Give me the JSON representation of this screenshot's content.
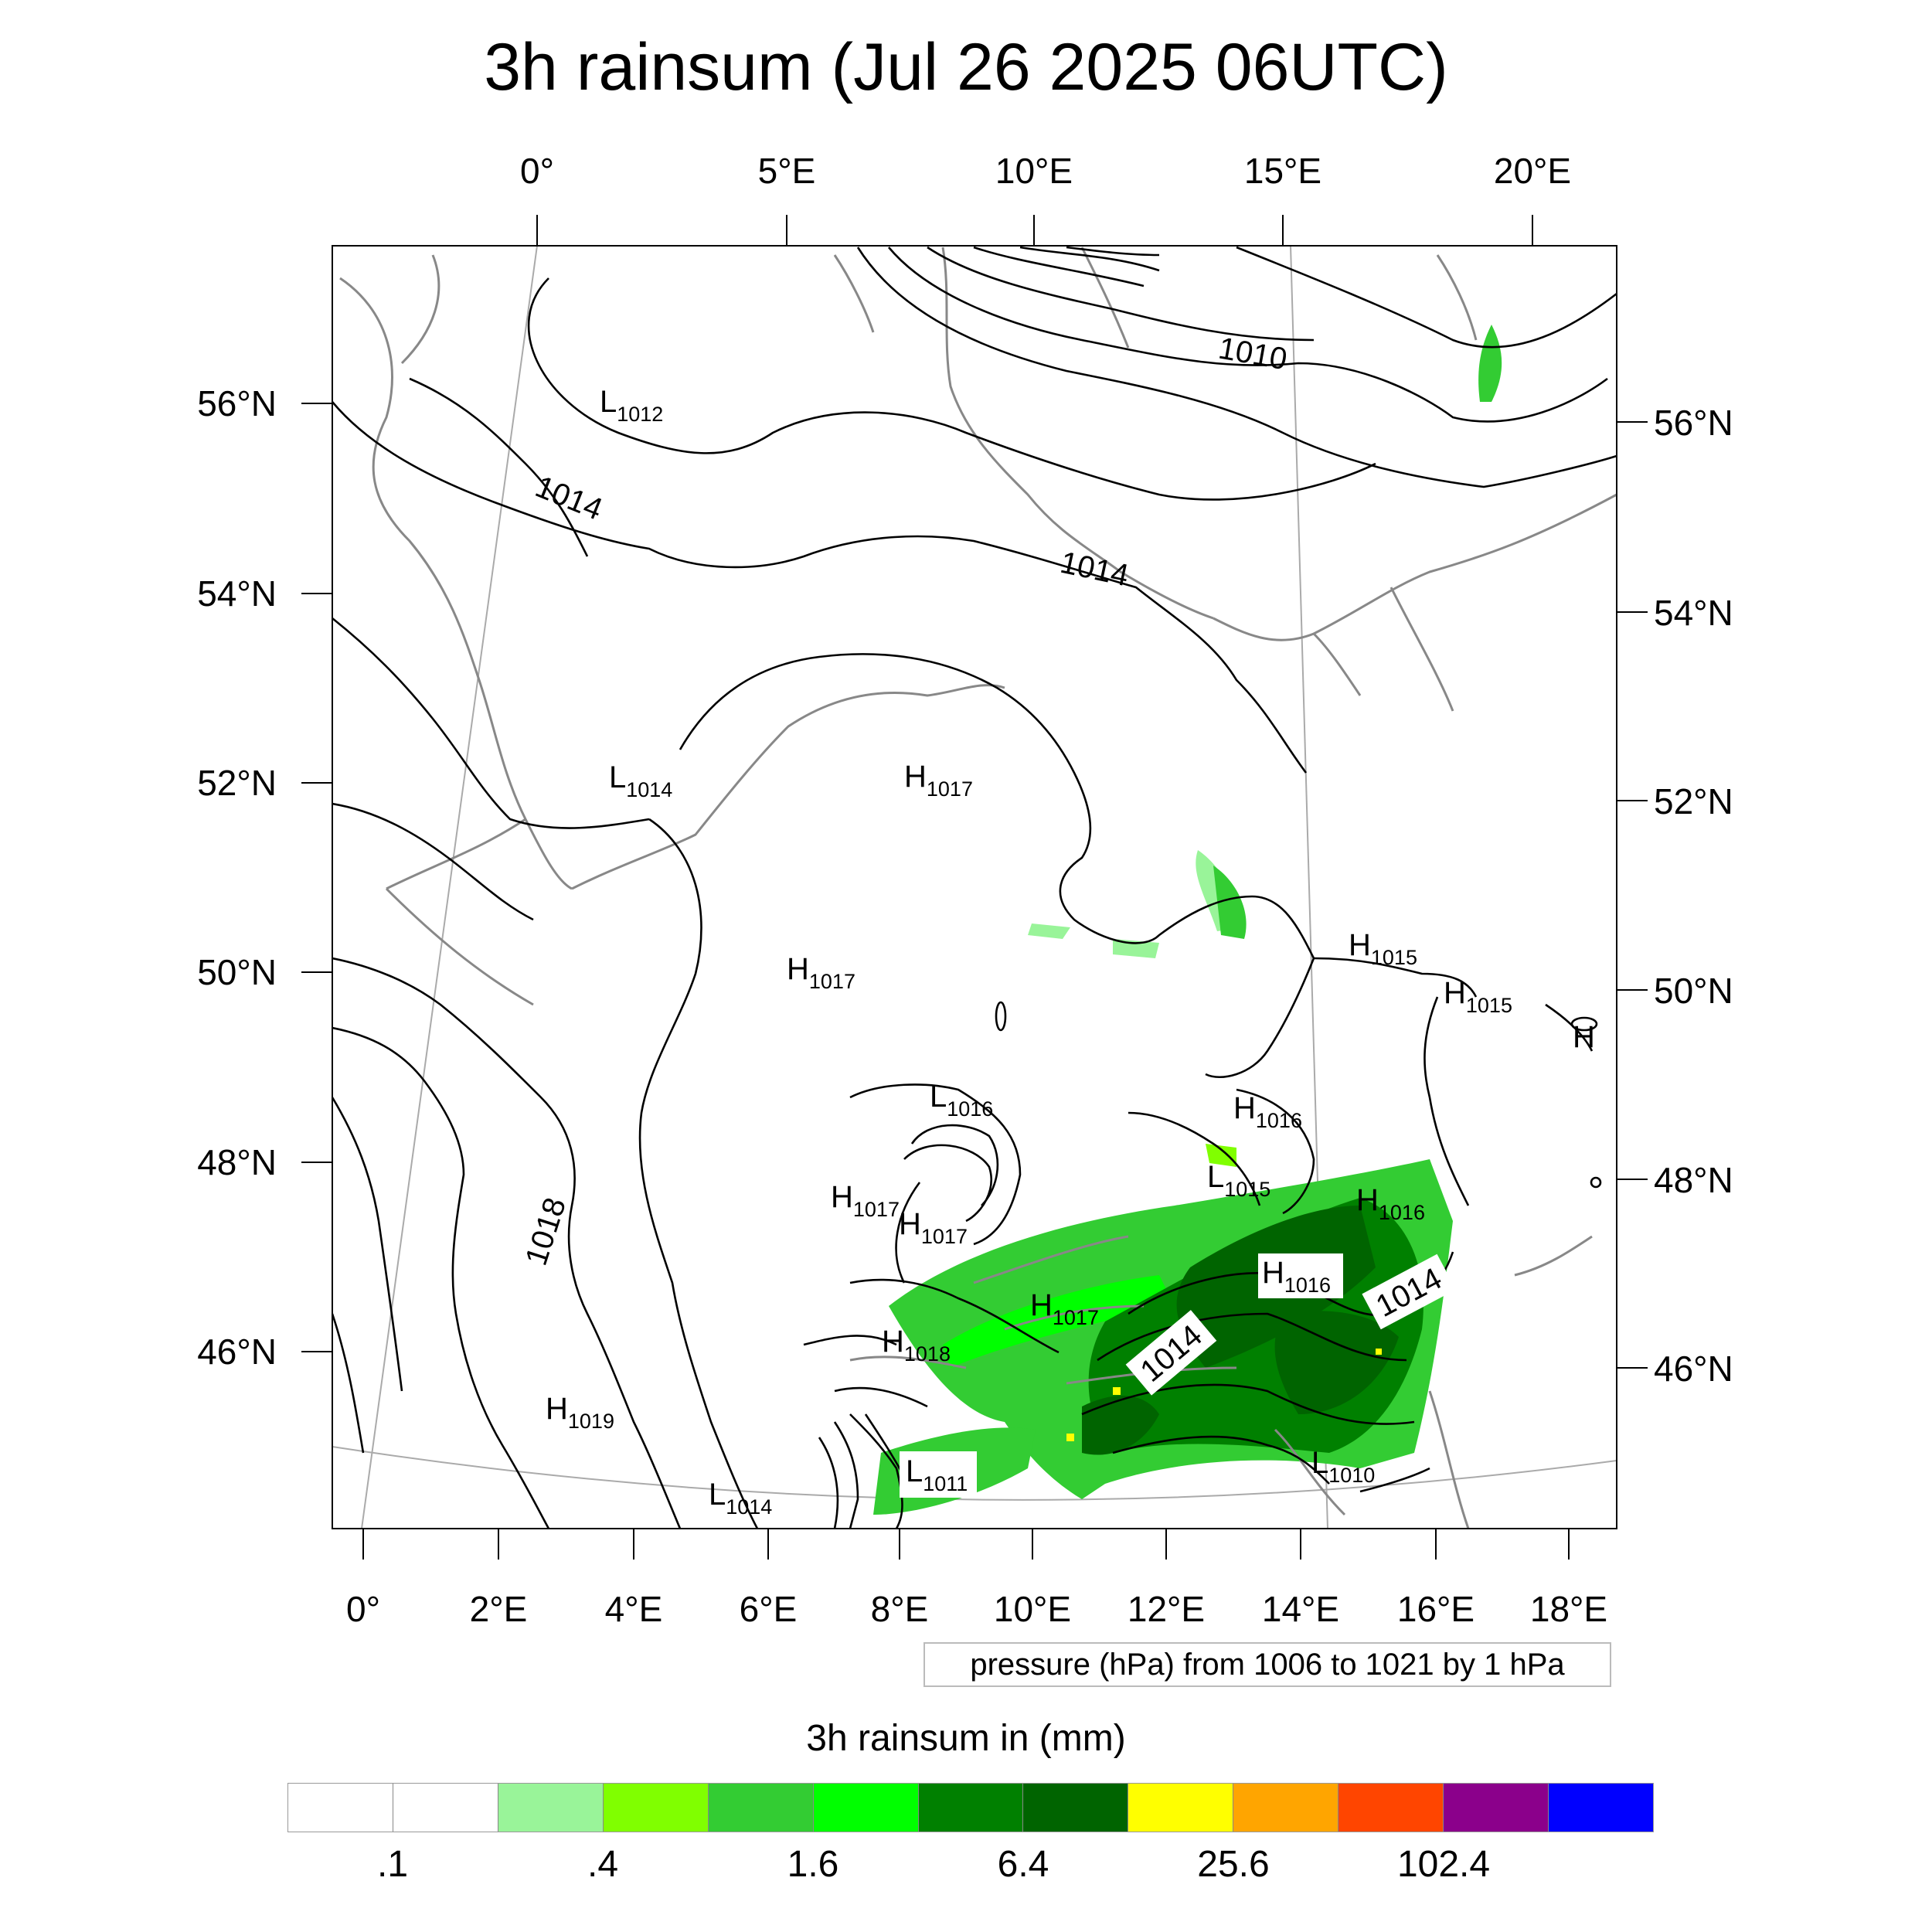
{
  "title": "3h rainsum (Jul 26 2025 06UTC)",
  "top_lon_labels": [
    "0°",
    "5°E",
    "10°E",
    "15°E",
    "20°E"
  ],
  "bottom_lon_labels": [
    "0°",
    "2°E",
    "4°E",
    "6°E",
    "8°E",
    "10°E",
    "12°E",
    "14°E",
    "16°E",
    "18°E"
  ],
  "left_lat_labels": [
    "56°N",
    "54°N",
    "52°N",
    "50°N",
    "48°N",
    "46°N"
  ],
  "right_lat_labels": [
    "56°N",
    "54°N",
    "52°N",
    "50°N",
    "48°N",
    "46°N"
  ],
  "contour_labels": [
    "1010",
    "1014",
    "1014",
    "1018",
    "1014",
    "1014"
  ],
  "pressure_centers": [
    {
      "type": "L",
      "value": "1012"
    },
    {
      "type": "L",
      "value": "1014"
    },
    {
      "type": "H",
      "value": "1017"
    },
    {
      "type": "H",
      "value": "1017"
    },
    {
      "type": "H",
      "value": "1015"
    },
    {
      "type": "H",
      "value": "1015"
    },
    {
      "type": "L",
      "value": "1016"
    },
    {
      "type": "H",
      "value": "1016"
    },
    {
      "type": "L",
      "value": "1015"
    },
    {
      "type": "H",
      "value": "1016"
    },
    {
      "type": "H",
      "value": "1017"
    },
    {
      "type": "H",
      "value": "1017"
    },
    {
      "type": "H",
      "value": "1016"
    },
    {
      "type": "H",
      "value": "1017"
    },
    {
      "type": "H",
      "value": "1018"
    },
    {
      "type": "H",
      "value": "1019"
    },
    {
      "type": "L",
      "value": "1011"
    },
    {
      "type": "L",
      "value": "1014"
    },
    {
      "type": "L",
      "value": "1010"
    },
    {
      "type": "H",
      "value": ""
    }
  ],
  "contour_info": "pressure (hPa) from 1006 to 1021 by 1 hPa",
  "colorbar": {
    "title": "3h rainsum in (mm)",
    "colors": [
      "#ffffff",
      "#ffffff",
      "#99f499",
      "#80ff00",
      "#33cc33",
      "#00ff00",
      "#008000",
      "#006400",
      "#ffff00",
      "#ffa500",
      "#ff4500",
      "#8b008b",
      "#0000ff"
    ],
    "labels": [
      ".1",
      ".4",
      "1.6",
      "6.4",
      "25.6",
      "102.4"
    ]
  }
}
